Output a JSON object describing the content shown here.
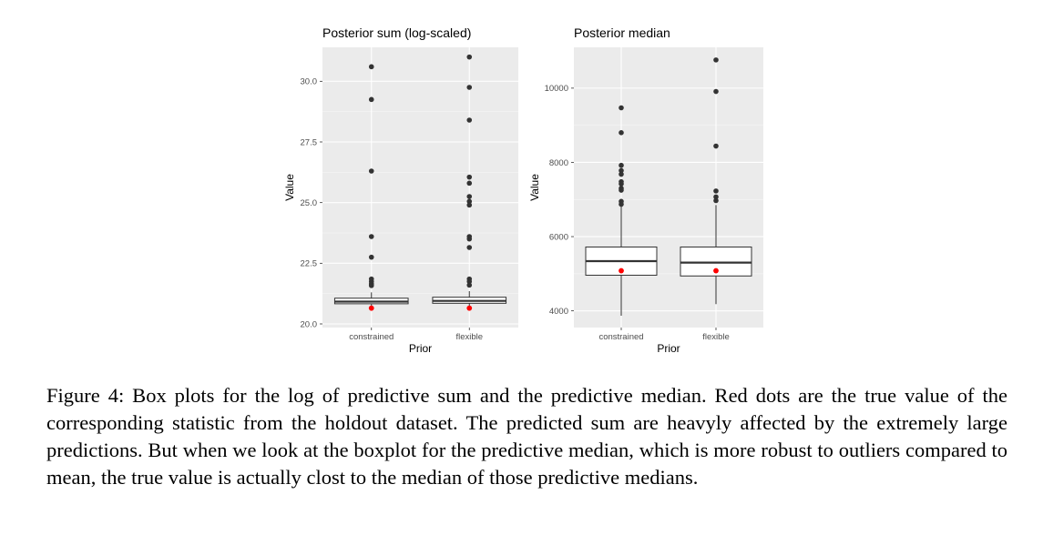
{
  "chart_data": [
    {
      "type": "box",
      "title": "Posterior sum (log-scaled)",
      "xlabel": "Prior",
      "ylabel": "Value",
      "categories": [
        "constrained",
        "flexible"
      ],
      "yticks": [
        20.0,
        22.5,
        25.0,
        27.5,
        30.0
      ],
      "ytick_labels": [
        "20.0",
        "22.5",
        "25.0",
        "27.5",
        "30.0"
      ],
      "ylim": [
        19.85,
        31.4
      ],
      "grid": true,
      "boxes": [
        {
          "category": "constrained",
          "whisker_low": 20.72,
          "q1": 20.83,
          "median": 20.92,
          "q3": 21.06,
          "whisker_high": 21.3,
          "outliers": [
            30.6,
            29.25,
            26.3,
            23.6,
            22.75,
            21.85,
            21.75,
            21.65,
            21.58
          ],
          "true_value": 20.65
        },
        {
          "category": "flexible",
          "whisker_low": 20.72,
          "q1": 20.85,
          "median": 20.95,
          "q3": 21.1,
          "whisker_high": 21.35,
          "outliers": [
            31.0,
            29.75,
            28.4,
            26.05,
            25.8,
            25.25,
            25.05,
            24.9,
            23.6,
            23.5,
            23.15,
            21.85,
            21.75,
            21.6
          ],
          "true_value": 20.65
        }
      ],
      "colors": {
        "panel": "#ebebeb",
        "grid_major": "#ffffff",
        "box": "#333333",
        "outlier": "#333333",
        "true_value": "#ff0000"
      }
    },
    {
      "type": "box",
      "title": "Posterior median",
      "xlabel": "Prior",
      "ylabel": "Value",
      "categories": [
        "constrained",
        "flexible"
      ],
      "yticks": [
        4000,
        6000,
        8000,
        10000
      ],
      "ytick_labels": [
        "4000",
        "6000",
        "8000",
        "10000"
      ],
      "ylim": [
        3550,
        11100
      ],
      "grid": true,
      "boxes": [
        {
          "category": "constrained",
          "whisker_low": 3870,
          "q1": 4960,
          "median": 5340,
          "q3": 5720,
          "whisker_high": 6820,
          "outliers": [
            9470,
            8800,
            7920,
            7780,
            7680,
            7480,
            7420,
            7300,
            7250,
            6950,
            6870
          ],
          "true_value": 5080
        },
        {
          "category": "flexible",
          "whisker_low": 4180,
          "q1": 4940,
          "median": 5300,
          "q3": 5720,
          "whisker_high": 6850,
          "outliers": [
            10760,
            9910,
            8440,
            7230,
            7070,
            6970
          ],
          "true_value": 5080
        }
      ],
      "colors": {
        "panel": "#ebebeb",
        "grid_major": "#ffffff",
        "box": "#333333",
        "outlier": "#333333",
        "true_value": "#ff0000"
      }
    }
  ],
  "caption": "Figure 4: Box plots for the log of predictive sum and the predictive median. Red dots are the true value of the corresponding statistic from the holdout dataset. The predicted sum are heavyly affected by the extremely large predictions. But when we look at the boxplot for the predictive median, which is more robust to outliers compared to mean, the true value is actually clost to the median of those predictive medians."
}
